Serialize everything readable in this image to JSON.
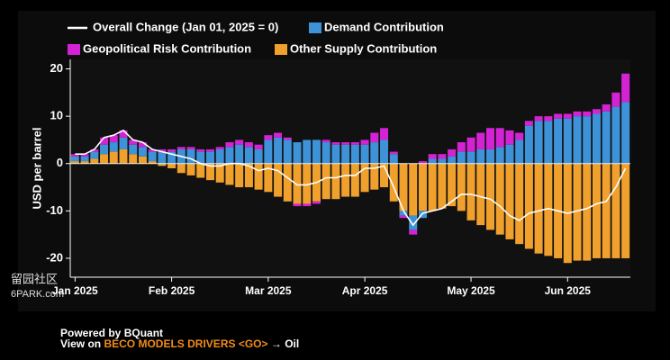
{
  "chart_data": {
    "type": "stacked_bar_line",
    "ylabel": "USD per barrel",
    "categories": [
      "Jan 2025",
      null,
      null,
      null,
      null,
      null,
      null,
      null,
      null,
      null,
      "Feb 2025",
      null,
      null,
      null,
      null,
      null,
      null,
      null,
      null,
      null,
      "Mar 2025",
      null,
      null,
      null,
      null,
      null,
      null,
      null,
      null,
      null,
      "Apr 2025",
      null,
      null,
      null,
      null,
      null,
      null,
      null,
      null,
      null,
      null,
      "May 2025",
      null,
      null,
      null,
      null,
      null,
      null,
      null,
      null,
      null,
      "Jun 2025",
      null,
      null,
      null,
      null,
      null,
      null
    ],
    "series": [
      {
        "name": "Overall Change (Jan 01, 2025 = 0)",
        "kind": "line",
        "color": "#ffffff",
        "values": [
          2,
          2,
          3,
          5.5,
          6,
          7,
          5,
          4.5,
          3,
          2.5,
          2,
          1.5,
          1,
          0,
          -0.5,
          -0.5,
          0,
          0,
          -0.5,
          -1.5,
          -1,
          -1.5,
          -3,
          -4.5,
          -4.5,
          -4,
          -3,
          -3,
          -2.5,
          -2.5,
          -1,
          -1,
          -0.5,
          -5,
          -10,
          -13,
          -10.5,
          -10,
          -9.5,
          -8,
          -6.5,
          -6.5,
          -7,
          -7.5,
          -9,
          -11,
          -12,
          -10.5,
          -10,
          -9.5,
          -10,
          -10.5,
          -10,
          -9.5,
          -8.5,
          -8,
          -5,
          -1
        ]
      },
      {
        "name": "Demand Contribution",
        "kind": "bar",
        "color": "#3d92d8",
        "values": [
          1,
          1,
          1.5,
          2,
          2,
          2.5,
          2,
          2,
          2,
          2.5,
          2.5,
          3,
          3,
          2.5,
          2.5,
          3,
          3.5,
          4,
          3.5,
          3,
          5,
          5.5,
          5,
          4.5,
          5,
          5,
          4.5,
          4,
          4,
          4,
          4,
          4.5,
          5,
          2,
          -1,
          -3,
          -1.5,
          1,
          1,
          1.5,
          2.5,
          2.5,
          3,
          3,
          3.5,
          4,
          5,
          8,
          9,
          9,
          9.5,
          9.5,
          10,
          10,
          10.5,
          11,
          12,
          13
        ]
      },
      {
        "name": "Geopolitical Risk Contribution",
        "kind": "bar",
        "color": "#d423d4",
        "values": [
          0.5,
          0.5,
          0.5,
          1.5,
          1.5,
          1.5,
          1,
          1,
          0.5,
          0.5,
          0.5,
          0.5,
          0.5,
          0.5,
          0.5,
          0.5,
          1,
          1,
          1,
          1,
          1,
          1,
          0.5,
          -0.5,
          -0.5,
          -0.5,
          0.5,
          0.5,
          0.5,
          0.5,
          1,
          2,
          2.5,
          0.5,
          -0.5,
          -1,
          0.5,
          1,
          1,
          1.5,
          2,
          3,
          3.5,
          4.5,
          4,
          3,
          1.5,
          1,
          1,
          1,
          1,
          1,
          1,
          1,
          1,
          1.5,
          3,
          6
        ]
      },
      {
        "name": "Other Supply Contribution",
        "kind": "bar",
        "color": "#f0a02c",
        "values": [
          0.5,
          0.5,
          1,
          2,
          2.5,
          3,
          2,
          1.5,
          0.5,
          -0.5,
          -1,
          -2,
          -2.5,
          -3,
          -3.5,
          -4,
          -4.5,
          -5,
          -5,
          -5.5,
          -6,
          -7,
          -8,
          -8.5,
          -8.5,
          -8,
          -7.5,
          -7.5,
          -7,
          -7,
          -6,
          -5.5,
          -5,
          -8,
          -10,
          -11,
          -10,
          -10,
          -9.5,
          -9,
          -10,
          -12,
          -13,
          -14,
          -15,
          -16,
          -17,
          -18,
          -19,
          -19.5,
          -20,
          -21,
          -20.5,
          -20.5,
          -20,
          -20,
          -20,
          -20
        ]
      }
    ],
    "stack_order": [
      "Other Supply Contribution",
      "Demand Contribution",
      "Geopolitical Risk Contribution"
    ],
    "ylim": [
      -24,
      22
    ],
    "yticks": [
      -20,
      -10,
      0,
      10,
      20
    ],
    "footer": {
      "line1": "Powered by BQuant",
      "prefix": "View on",
      "link": "BECO MODELS DRIVERS <GO>",
      "suffix": "→ Oil"
    },
    "watermark": [
      "留园社区",
      "6PARK.com"
    ]
  }
}
